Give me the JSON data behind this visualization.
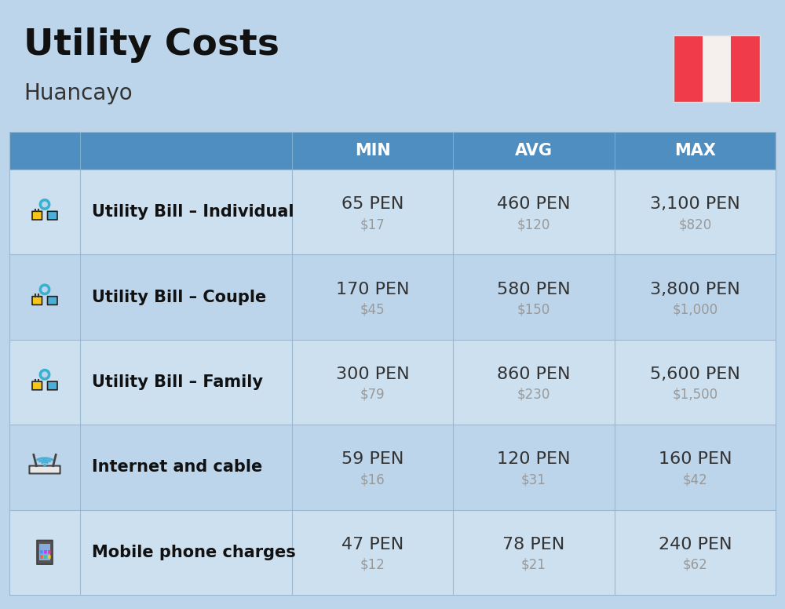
{
  "title": "Utility Costs",
  "subtitle": "Huancayo",
  "background_color": "#bdd5ea",
  "header_bg_color": "#4f8ec1",
  "header_text_color": "#ffffff",
  "row_bg_even": "#cde0f0",
  "row_bg_odd": "#bdd5ea",
  "separator_color": "#9ab8d0",
  "columns": [
    "MIN",
    "AVG",
    "MAX"
  ],
  "rows": [
    {
      "label": "Utility Bill – Individual",
      "min_pen": "65 PEN",
      "min_usd": "$17",
      "avg_pen": "460 PEN",
      "avg_usd": "$120",
      "max_pen": "3,100 PEN",
      "max_usd": "$820"
    },
    {
      "label": "Utility Bill – Couple",
      "min_pen": "170 PEN",
      "min_usd": "$45",
      "avg_pen": "580 PEN",
      "avg_usd": "$150",
      "max_pen": "3,800 PEN",
      "max_usd": "$1,000"
    },
    {
      "label": "Utility Bill – Family",
      "min_pen": "300 PEN",
      "min_usd": "$79",
      "avg_pen": "860 PEN",
      "avg_usd": "$230",
      "max_pen": "5,600 PEN",
      "max_usd": "$1,500"
    },
    {
      "label": "Internet and cable",
      "min_pen": "59 PEN",
      "min_usd": "$16",
      "avg_pen": "120 PEN",
      "avg_usd": "$31",
      "max_pen": "160 PEN",
      "max_usd": "$42"
    },
    {
      "label": "Mobile phone charges",
      "min_pen": "47 PEN",
      "min_usd": "$12",
      "avg_pen": "78 PEN",
      "avg_usd": "$21",
      "max_pen": "240 PEN",
      "max_usd": "$62"
    }
  ],
  "title_fontsize": 34,
  "subtitle_fontsize": 20,
  "header_fontsize": 15,
  "label_fontsize": 15,
  "value_fontsize": 16,
  "subvalue_fontsize": 12,
  "pen_color": "#333333",
  "usd_color": "#999999",
  "label_color": "#111111",
  "flag_red": "#f03c4a",
  "flag_white": "#f5f0ee"
}
